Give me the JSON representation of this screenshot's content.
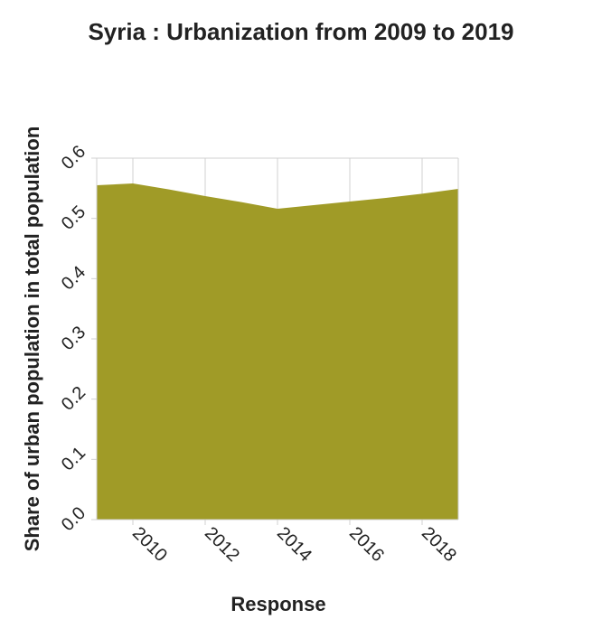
{
  "chart_data": {
    "type": "area",
    "title": "Syria : Urbanization from 2009 to 2019",
    "xlabel": "Response",
    "ylabel": "Share of urban population in total population",
    "x": [
      2009,
      2010,
      2011,
      2012,
      2013,
      2014,
      2015,
      2016,
      2017,
      2018,
      2019
    ],
    "series": [
      {
        "values": [
          0.555,
          0.558,
          0.548,
          0.537,
          0.527,
          0.516,
          0.522,
          0.528,
          0.534,
          0.541,
          0.549
        ]
      }
    ],
    "xlim": [
      2009,
      2019
    ],
    "ylim": [
      0,
      0.6
    ],
    "xticks": [
      "2010",
      "2012",
      "2014",
      "2016",
      "2018"
    ],
    "xtick_values": [
      2010,
      2012,
      2014,
      2016,
      2018
    ],
    "yticks": [
      "0.0",
      "0.1",
      "0.2",
      "0.3",
      "0.4",
      "0.5",
      "0.6"
    ],
    "ytick_values": [
      0,
      0.1,
      0.2,
      0.3,
      0.4,
      0.5,
      0.6
    ],
    "grid": true,
    "fill_color": "#a09b27"
  }
}
